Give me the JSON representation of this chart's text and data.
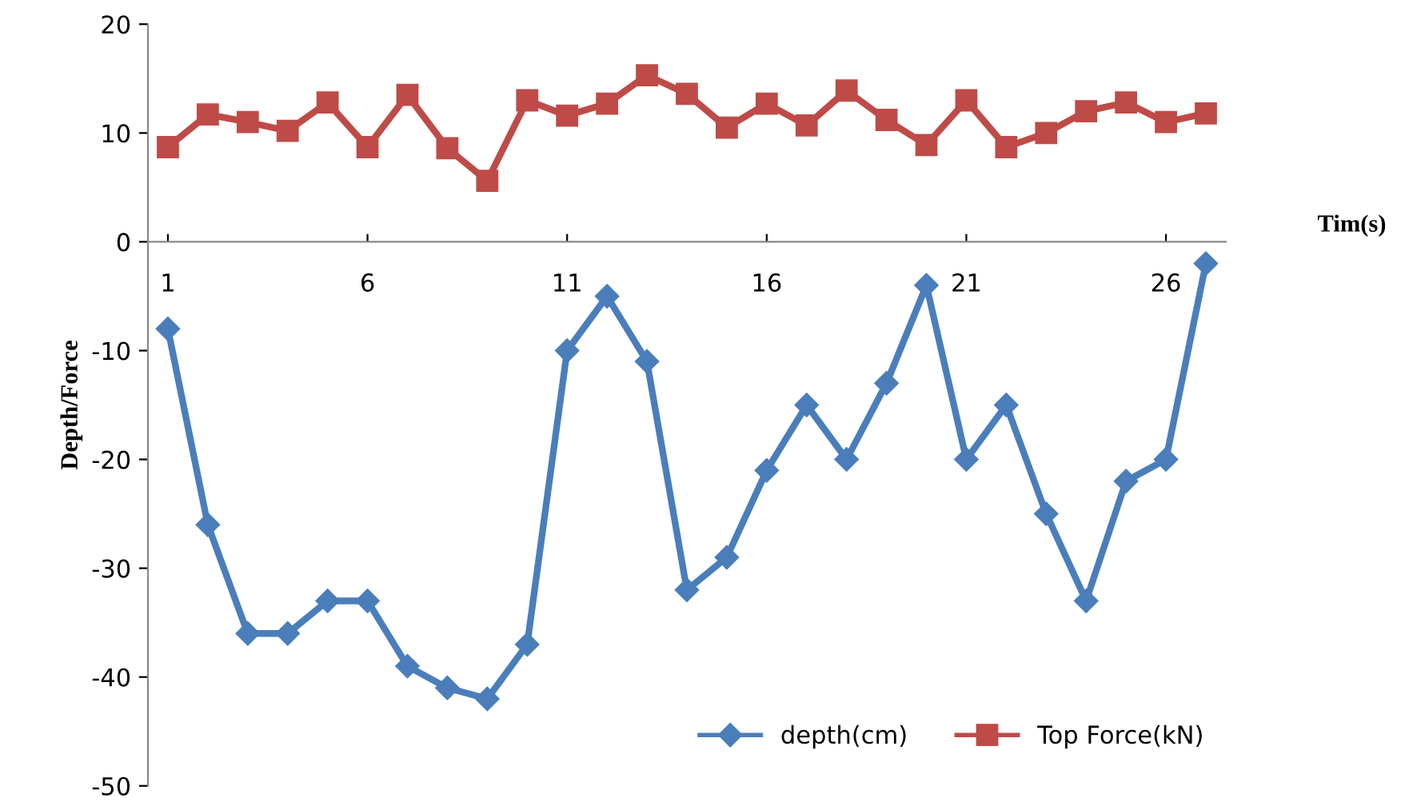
{
  "chart_data": {
    "type": "line",
    "categories": [
      "1",
      null,
      null,
      null,
      null,
      "6",
      null,
      null,
      null,
      null,
      "11",
      null,
      null,
      null,
      null,
      "16",
      null,
      null,
      null,
      null,
      "21",
      null,
      null,
      null,
      null,
      "26",
      null
    ],
    "series": [
      {
        "name": "depth(cm)",
        "color": "#4a7ebb",
        "marker": "diamond",
        "values": [
          -8,
          -26,
          -36,
          -36,
          -33,
          -33,
          -39,
          -41,
          -42,
          -37,
          -10,
          -5,
          -11,
          -32,
          -29,
          -21,
          -15,
          -20,
          -13,
          -4,
          -20,
          -15,
          -25,
          -33,
          -22,
          -20,
          -2
        ]
      },
      {
        "name": "Top Force(kN)",
        "color": "#be4b48",
        "marker": "square",
        "values": [
          8.7,
          11.7,
          11,
          10.2,
          12.8,
          8.7,
          13.5,
          8.6,
          5.6,
          13,
          11.6,
          12.7,
          15.3,
          13.6,
          10.5,
          12.7,
          10.7,
          13.9,
          11.2,
          8.9,
          13,
          8.7,
          10,
          12,
          12.8,
          11,
          11.8
        ]
      }
    ],
    "xlabel": "Tim(s)",
    "ylabel": "Depth/Force",
    "ylim": [
      -50,
      20
    ],
    "yticks": [
      -50,
      -40,
      -30,
      -20,
      -10,
      0,
      10,
      20
    ],
    "grid": false,
    "legend": "bottom right",
    "line_style": "solid"
  }
}
